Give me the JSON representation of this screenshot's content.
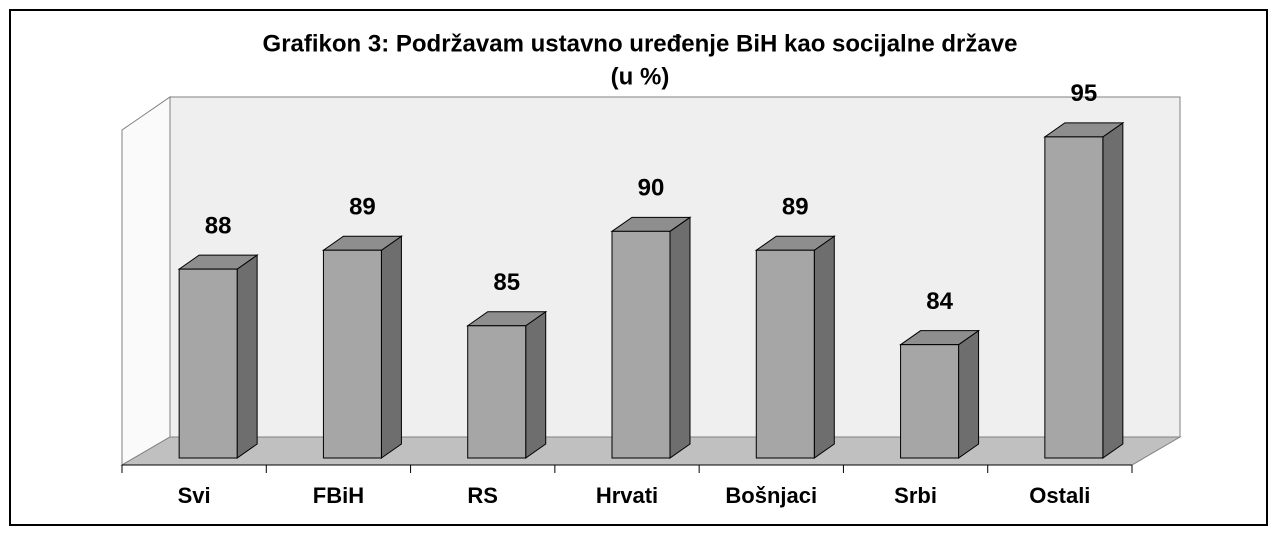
{
  "chart_data": {
    "type": "bar3d",
    "title": "Grafikon 3: Podržavam ustavno uređenje BiH kao socijalne države",
    "subtitle": "(u %)",
    "categories": [
      "Svi",
      "FBiH",
      "RS",
      "Hrvati",
      "Bošnjaci",
      "Srbi",
      "Ostali"
    ],
    "values": [
      88,
      89,
      85,
      90,
      89,
      84,
      95
    ],
    "color": "#a6a6a6",
    "ylim": [
      78,
      96
    ]
  }
}
